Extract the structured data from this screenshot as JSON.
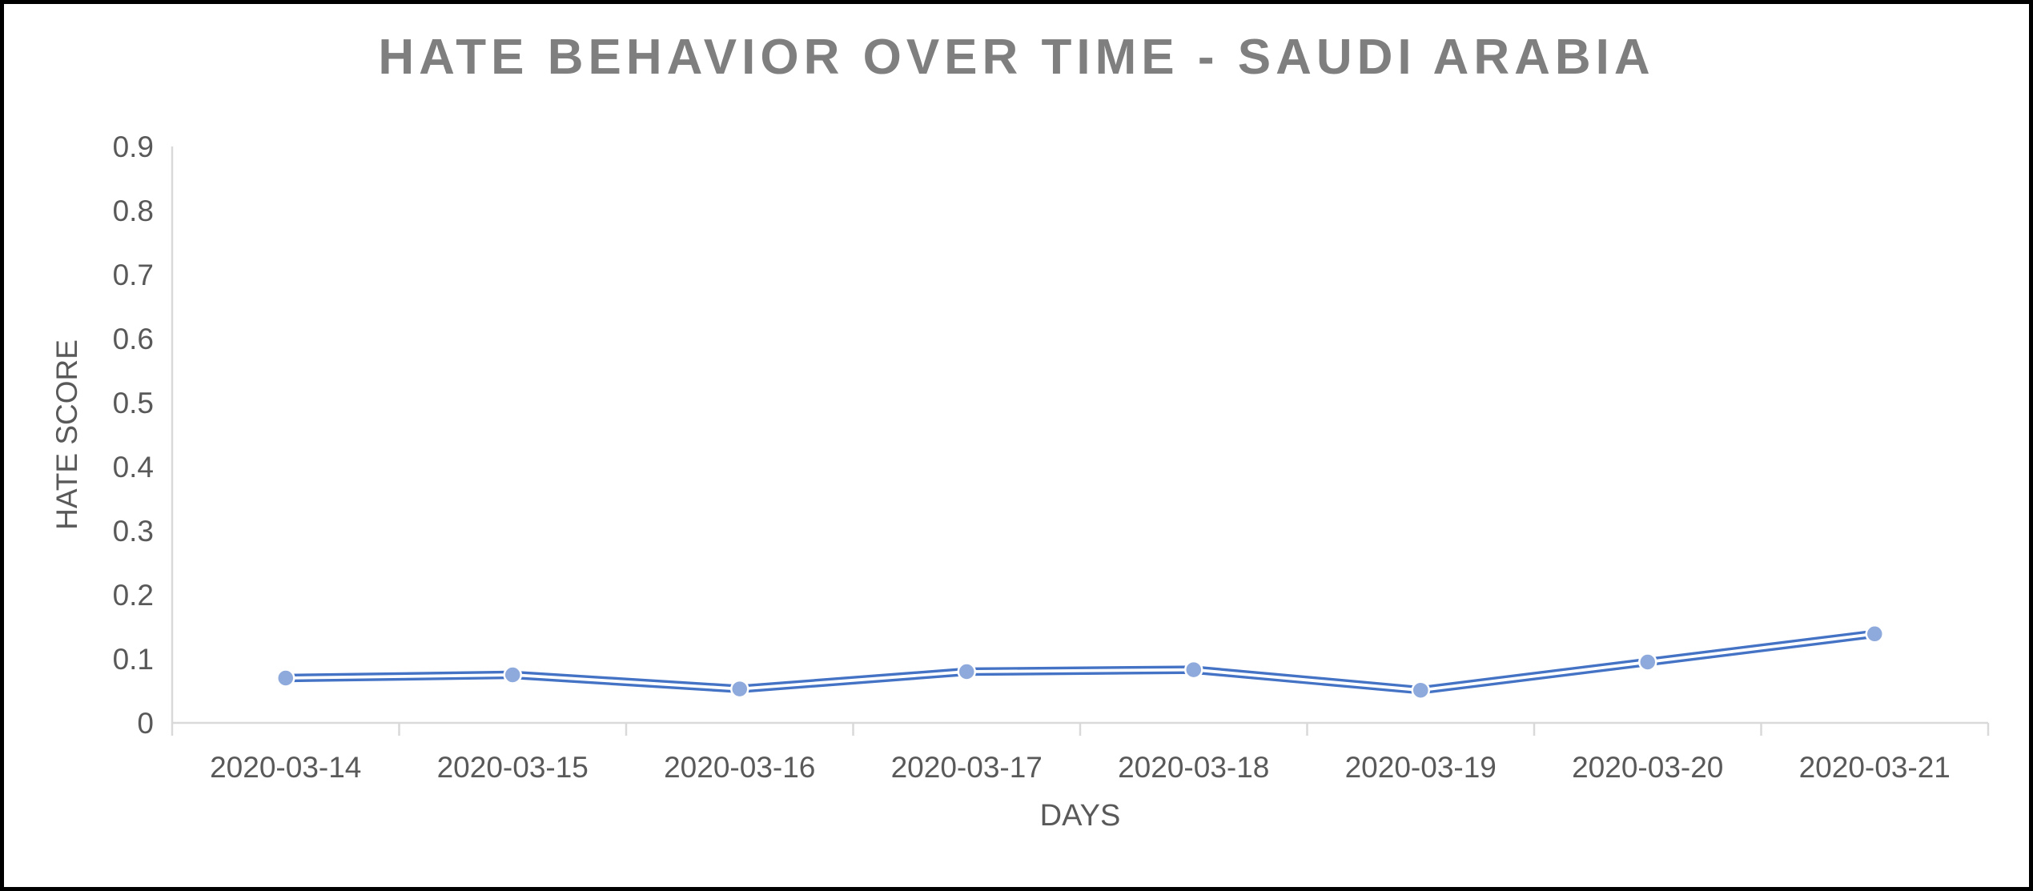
{
  "chart_data": {
    "type": "line",
    "title": "HATE BEHAVIOR OVER TIME - SAUDI ARABIA",
    "xlabel": "DAYS",
    "ylabel": "HATE SCORE",
    "categories": [
      "2020-03-14",
      "2020-03-15",
      "2020-03-16",
      "2020-03-17",
      "2020-03-18",
      "2020-03-19",
      "2020-03-20",
      "2020-03-21"
    ],
    "series": [
      {
        "name": "hate score",
        "values": [
          0.07,
          0.075,
          0.053,
          0.08,
          0.083,
          0.051,
          0.095,
          0.139
        ]
      }
    ],
    "ylim": [
      0,
      0.9
    ],
    "y_ticks": [
      0,
      0.1,
      0.2,
      0.3,
      0.4,
      0.5,
      0.6,
      0.7,
      0.8,
      0.9
    ],
    "y_tick_labels": [
      "0",
      "0.1",
      "0.2",
      "0.3",
      "0.4",
      "0.5",
      "0.6",
      "0.7",
      "0.8",
      "0.9"
    ],
    "grid": false,
    "legend": "none",
    "line_style": "double-compound-line-with-markers",
    "colors": {
      "line": "#4472C4",
      "line_inner_stripe": "#FFFFFF",
      "marker_fill": "#8EA9DB",
      "marker_outline": "#FFFFFF",
      "axis_line": "#D9D9D9",
      "title_text": "#7F7F7F",
      "tick_text": "#595959",
      "axis_title_text": "#595959",
      "background": "#FFFFFF",
      "frame_border": "#000000"
    }
  }
}
